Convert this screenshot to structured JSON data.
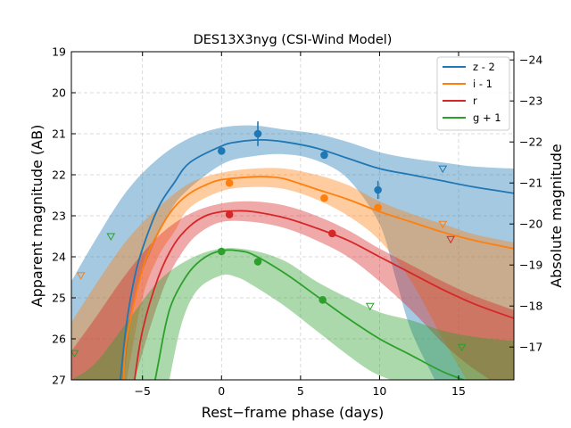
{
  "chart_data": {
    "type": "line",
    "title": "DES13X3nyg (CSI-Wind Model)",
    "xlabel": "Rest−frame phase (days)",
    "ylabel": "Apparent magnitude (AB)",
    "y2label": "Absolute magnitude",
    "xlim": [
      -9.5,
      18.5
    ],
    "ylim": [
      27,
      19
    ],
    "y2lim": [
      -16.2,
      -24.2
    ],
    "x_ticks": [
      -5,
      0,
      5,
      10,
      15
    ],
    "x_tick_labels": [
      "−5",
      "0",
      "5",
      "10",
      "15"
    ],
    "y_ticks": [
      19,
      20,
      21,
      22,
      23,
      24,
      25,
      26,
      27
    ],
    "y_tick_labels": [
      "19",
      "20",
      "21",
      "22",
      "23",
      "24",
      "25",
      "26",
      "27"
    ],
    "y2_ticks": [
      -17,
      -18,
      -19,
      -20,
      -21,
      -22,
      -23,
      -24
    ],
    "y2_tick_labels": [
      "−17",
      "−18",
      "−19",
      "−20",
      "−21",
      "−22",
      "−23",
      "−24"
    ],
    "grid": true,
    "legend_position": "top-right",
    "series": [
      {
        "name": "z - 2",
        "color": "#1f77b4",
        "model": {
          "x": [
            -6.4,
            -6.0,
            -5.5,
            -5.0,
            -4.0,
            -3.0,
            -2.0,
            0.0,
            1.0,
            2.5,
            4.0,
            6.0,
            8.0,
            10.0,
            12.0,
            14.0,
            16.0,
            18.5
          ],
          "y": [
            27.0,
            25.6,
            24.5,
            23.8,
            22.8,
            22.2,
            21.7,
            21.3,
            21.2,
            21.15,
            21.2,
            21.35,
            21.6,
            21.85,
            22.0,
            22.15,
            22.3,
            22.45
          ]
        },
        "band_upper": {
          "x": [
            -9.5,
            -8.0,
            -6.0,
            -4.0,
            -2.0,
            0.0,
            2.0,
            4.0,
            6.0,
            8.0,
            10.0,
            12.0,
            14.0,
            16.0,
            18.5
          ],
          "y": [
            24.6,
            23.6,
            22.4,
            21.6,
            21.1,
            20.85,
            20.8,
            20.9,
            21.0,
            21.2,
            21.45,
            21.6,
            21.7,
            21.8,
            21.85
          ]
        },
        "band_lower": {
          "x": [
            -6.2,
            -5.5,
            -4.5,
            -3.5,
            -2.5,
            0.0,
            2.0,
            4.0,
            6.0,
            8.0,
            10.0,
            11.0,
            12.0,
            13.5
          ],
          "y": [
            27.0,
            25.0,
            23.9,
            23.1,
            22.5,
            21.75,
            21.55,
            21.5,
            21.65,
            22.1,
            23.2,
            24.5,
            25.8,
            27.0
          ]
        },
        "points": [
          {
            "x": 0.0,
            "y": 21.42,
            "err": 0.05
          },
          {
            "x": 2.3,
            "y": 21.0,
            "err": 0.3
          },
          {
            "x": 6.5,
            "y": 21.52,
            "err": 0.05
          },
          {
            "x": 9.9,
            "y": 22.37,
            "err": 0.22
          }
        ],
        "upper_limits": [
          {
            "x": 14.0,
            "y": 21.85
          }
        ]
      },
      {
        "name": "i - 1",
        "color": "#ff7f0e",
        "model": {
          "x": [
            -6.2,
            -6.0,
            -5.0,
            -4.0,
            -3.0,
            -2.0,
            -1.0,
            0.0,
            2.0,
            3.0,
            4.0,
            6.0,
            8.0,
            10.0,
            12.0,
            14.0,
            16.0,
            18.5
          ],
          "y": [
            27.0,
            26.0,
            24.3,
            23.4,
            22.8,
            22.45,
            22.25,
            22.12,
            22.05,
            22.05,
            22.1,
            22.35,
            22.6,
            22.9,
            23.15,
            23.4,
            23.6,
            23.8
          ]
        },
        "band_upper": {
          "x": [
            -9.5,
            -8.0,
            -6.0,
            -4.0,
            -2.0,
            0.0,
            2.0,
            4.0,
            6.0,
            8.0,
            10.0,
            12.0,
            14.0,
            16.0,
            18.5
          ],
          "y": [
            25.6,
            24.7,
            23.6,
            22.8,
            22.2,
            21.95,
            21.85,
            21.85,
            22.0,
            22.25,
            22.65,
            22.95,
            23.2,
            23.45,
            23.65
          ]
        },
        "band_lower": {
          "x": [
            -6.0,
            -5.0,
            -4.0,
            -3.0,
            -2.0,
            0.0,
            2.0,
            4.0,
            6.0,
            8.0,
            10.0,
            12.0,
            14.0,
            15.5
          ],
          "y": [
            27.0,
            25.0,
            24.0,
            23.4,
            22.8,
            22.4,
            22.3,
            22.35,
            22.6,
            23.0,
            23.6,
            24.6,
            26.0,
            27.0
          ]
        },
        "points": [
          {
            "x": 0.5,
            "y": 22.2,
            "err": 0.05
          },
          {
            "x": 6.5,
            "y": 22.57,
            "err": 0.05
          },
          {
            "x": 9.9,
            "y": 22.8,
            "err": 0.07
          }
        ],
        "upper_limits": [
          {
            "x": -8.9,
            "y": 24.45
          },
          {
            "x": 14.0,
            "y": 23.2
          }
        ]
      },
      {
        "name": "r",
        "color": "#d62728",
        "model": {
          "x": [
            -5.5,
            -5.0,
            -4.0,
            -3.0,
            -2.0,
            -1.0,
            0.0,
            1.0,
            2.0,
            4.0,
            6.0,
            8.0,
            10.0,
            12.0,
            14.0,
            16.0,
            18.5
          ],
          "y": [
            27.0,
            25.8,
            24.5,
            23.7,
            23.25,
            23.0,
            22.9,
            22.88,
            22.9,
            23.05,
            23.3,
            23.6,
            24.0,
            24.4,
            24.8,
            25.15,
            25.5
          ]
        },
        "band_upper": {
          "x": [
            -9.5,
            -8.0,
            -6.0,
            -4.0,
            -2.0,
            0.0,
            2.0,
            4.0,
            6.0,
            8.0,
            10.0,
            12.0,
            14.0,
            16.0,
            18.5
          ],
          "y": [
            26.3,
            25.5,
            24.4,
            23.5,
            22.95,
            22.7,
            22.65,
            22.75,
            23.0,
            23.35,
            23.8,
            24.2,
            24.6,
            24.95,
            25.3
          ]
        },
        "band_lower": {
          "x": [
            -5.5,
            -4.5,
            -3.5,
            -2.5,
            -1.5,
            0.0,
            2.0,
            4.0,
            6.0,
            8.0,
            10.0,
            12.0,
            14.0,
            15.5,
            17.0
          ],
          "y": [
            27.0,
            25.7,
            24.6,
            23.9,
            23.45,
            23.15,
            23.15,
            23.3,
            23.6,
            24.0,
            24.6,
            25.3,
            26.1,
            26.6,
            27.0
          ]
        },
        "points": [
          {
            "x": 0.5,
            "y": 22.97,
            "err": 0.05
          },
          {
            "x": 7.0,
            "y": 23.43,
            "err": 0.05
          }
        ],
        "upper_limits": [
          {
            "x": 14.5,
            "y": 23.57
          }
        ]
      },
      {
        "name": "g + 1",
        "color": "#2ca02c",
        "model": {
          "x": [
            -4.2,
            -4.0,
            -3.5,
            -3.0,
            -2.0,
            -1.0,
            0.0,
            1.0,
            2.0,
            4.0,
            6.0,
            8.0,
            10.0,
            12.0,
            14.0,
            16.0,
            18.5
          ],
          "y": [
            27.0,
            26.6,
            25.6,
            25.0,
            24.35,
            24.0,
            23.85,
            23.85,
            23.95,
            24.4,
            24.95,
            25.5,
            26.0,
            26.4,
            26.8,
            27.1,
            27.5
          ]
        },
        "band_upper": {
          "x": [
            -9.5,
            -8.0,
            -6.0,
            -4.0,
            -2.0,
            0.0,
            2.0,
            4.0,
            6.0,
            8.0,
            10.0,
            12.0,
            14.0,
            16.0,
            18.5
          ],
          "y": [
            27.0,
            26.6,
            25.6,
            24.6,
            24.05,
            23.8,
            23.85,
            24.1,
            24.6,
            25.0,
            25.35,
            25.55,
            25.8,
            25.95,
            26.05
          ]
        },
        "band_lower": {
          "x": [
            -3.3,
            -2.5,
            -1.5,
            0.0,
            1.0,
            2.0,
            4.0,
            6.0,
            8.0,
            9.5,
            10.7
          ],
          "y": [
            27.0,
            25.6,
            24.8,
            24.45,
            24.5,
            24.7,
            25.2,
            25.8,
            26.4,
            26.8,
            27.0
          ]
        },
        "points": [
          {
            "x": 0.0,
            "y": 23.87,
            "err": 0.05
          },
          {
            "x": 2.3,
            "y": 24.12,
            "err": 0.06
          },
          {
            "x": 6.4,
            "y": 25.05,
            "err": 0.06
          }
        ],
        "upper_limits": [
          {
            "x": -7.0,
            "y": 23.5
          },
          {
            "x": 9.4,
            "y": 25.2
          },
          {
            "x": 15.2,
            "y": 26.2
          },
          {
            "x": -9.3,
            "y": 26.35
          }
        ]
      }
    ]
  }
}
